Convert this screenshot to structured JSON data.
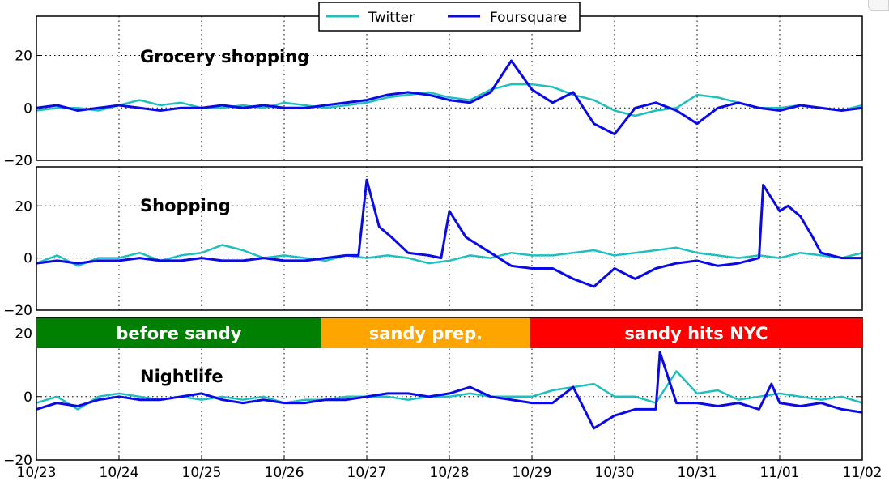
{
  "chart_data": {
    "type": "line",
    "x_tick_labels": [
      "10/23",
      "10/24",
      "10/25",
      "10/26",
      "10/27",
      "10/28",
      "10/29",
      "10/30",
      "10/31",
      "11/01",
      "11/02"
    ],
    "xlim": [
      0,
      10
    ],
    "legend": {
      "placement": "top-center",
      "entries": [
        "Twitter",
        "Foursquare"
      ]
    },
    "colors": {
      "Twitter": "#1fbfbf",
      "Foursquare": "#0a0ae6"
    },
    "phases": [
      {
        "label": "before sandy",
        "start": 0,
        "end": 3.45,
        "color": "#008000"
      },
      {
        "label": "sandy prep.",
        "start": 3.45,
        "end": 5.98,
        "color": "#ffa500"
      },
      {
        "label": "sandy hits NYC",
        "start": 5.98,
        "end": 10,
        "color": "#ff0000"
      }
    ],
    "panels": [
      {
        "title": "Grocery shopping",
        "ylim": [
          -20,
          35
        ],
        "y_ticks": [
          -20,
          0,
          20
        ],
        "y_tick_labels": [
          "−20",
          "0",
          "20"
        ],
        "series": [
          {
            "name": "Twitter",
            "x": [
              0,
              0.25,
              0.5,
              0.75,
              1,
              1.25,
              1.5,
              1.75,
              2,
              2.25,
              2.5,
              2.75,
              3,
              3.25,
              3.5,
              3.75,
              4,
              4.25,
              4.5,
              4.75,
              5,
              5.25,
              5.5,
              5.75,
              6,
              6.25,
              6.5,
              6.75,
              7,
              7.25,
              7.5,
              7.75,
              8,
              8.25,
              8.5,
              8.75,
              9,
              9.25,
              9.5,
              9.75,
              10
            ],
            "y": [
              -1,
              0,
              0,
              -1,
              1,
              3,
              1,
              2,
              0,
              0,
              1,
              0,
              2,
              1,
              0,
              1,
              2,
              4,
              5,
              6,
              4,
              3,
              7,
              9,
              9,
              8,
              5,
              3,
              -1,
              -3,
              -1,
              0,
              5,
              4,
              2,
              0,
              0,
              1,
              0,
              -1,
              1
            ]
          },
          {
            "name": "Foursquare",
            "x": [
              0,
              0.25,
              0.5,
              0.75,
              1,
              1.25,
              1.5,
              1.75,
              2,
              2.25,
              2.5,
              2.75,
              3,
              3.25,
              3.5,
              3.75,
              4,
              4.25,
              4.5,
              4.75,
              5,
              5.25,
              5.5,
              5.75,
              6,
              6.25,
              6.5,
              6.75,
              7,
              7.25,
              7.5,
              7.75,
              8,
              8.25,
              8.5,
              8.75,
              9,
              9.25,
              9.5,
              9.75,
              10
            ],
            "y": [
              0,
              1,
              -1,
              0,
              1,
              0,
              -1,
              0,
              0,
              1,
              0,
              1,
              0,
              0,
              1,
              2,
              3,
              5,
              6,
              5,
              3,
              2,
              6,
              18,
              7,
              2,
              6,
              -6,
              -10,
              0,
              2,
              -1,
              -6,
              0,
              2,
              0,
              -1,
              1,
              0,
              -1,
              0
            ]
          }
        ]
      },
      {
        "title": "Shopping",
        "ylim": [
          -20,
          35
        ],
        "y_ticks": [
          -20,
          0,
          20
        ],
        "y_tick_labels": [
          "−20",
          "0",
          "20"
        ],
        "series": [
          {
            "name": "Twitter",
            "x": [
              0,
              0.25,
              0.5,
              0.75,
              1,
              1.25,
              1.5,
              1.75,
              2,
              2.25,
              2.5,
              2.75,
              3,
              3.25,
              3.5,
              3.75,
              4,
              4.25,
              4.5,
              4.75,
              5,
              5.25,
              5.5,
              5.75,
              6,
              6.25,
              6.5,
              6.75,
              7,
              7.25,
              7.5,
              7.75,
              8,
              8.25,
              8.5,
              8.75,
              9,
              9.25,
              9.5,
              9.75,
              10
            ],
            "y": [
              -2,
              1,
              -3,
              0,
              0,
              2,
              -1,
              1,
              2,
              5,
              3,
              0,
              1,
              0,
              -1,
              1,
              0,
              1,
              0,
              -2,
              -1,
              1,
              0,
              2,
              1,
              1,
              2,
              3,
              1,
              2,
              3,
              4,
              2,
              1,
              0,
              1,
              0,
              2,
              1,
              0,
              2
            ]
          },
          {
            "name": "Foursquare",
            "x": [
              0,
              0.25,
              0.5,
              0.75,
              1,
              1.25,
              1.5,
              1.75,
              2,
              2.25,
              2.5,
              2.75,
              3,
              3.25,
              3.5,
              3.75,
              3.9,
              4,
              4.15,
              4.3,
              4.5,
              4.75,
              4.9,
              5,
              5.2,
              5.5,
              5.75,
              6,
              6.25,
              6.5,
              6.75,
              7,
              7.25,
              7.5,
              7.75,
              8,
              8.25,
              8.5,
              8.75,
              8.8,
              9,
              9.1,
              9.25,
              9.4,
              9.5,
              9.75,
              10
            ],
            "y": [
              -2,
              -1,
              -2,
              -1,
              -1,
              0,
              -1,
              -1,
              0,
              -1,
              -1,
              0,
              -1,
              -1,
              0,
              1,
              1,
              30,
              12,
              8,
              2,
              1,
              0,
              18,
              8,
              2,
              -3,
              -4,
              -4,
              -8,
              -11,
              -4,
              -8,
              -4,
              -2,
              -1,
              -3,
              -2,
              0,
              28,
              18,
              20,
              16,
              8,
              2,
              0,
              0
            ]
          }
        ]
      },
      {
        "title": "Nightlife",
        "ylim": [
          -20,
          25
        ],
        "y_ticks": [
          -20,
          0,
          20
        ],
        "y_tick_labels": [
          "−20",
          "0",
          "20"
        ],
        "series": [
          {
            "name": "Twitter",
            "x": [
              0,
              0.25,
              0.5,
              0.75,
              1,
              1.25,
              1.5,
              1.75,
              2,
              2.25,
              2.5,
              2.75,
              3,
              3.25,
              3.5,
              3.75,
              4,
              4.25,
              4.5,
              4.75,
              5,
              5.25,
              5.5,
              5.75,
              6,
              6.25,
              6.5,
              6.75,
              7,
              7.25,
              7.5,
              7.75,
              8,
              8.25,
              8.5,
              8.75,
              9,
              9.25,
              9.5,
              9.75,
              10
            ],
            "y": [
              -2,
              0,
              -4,
              0,
              1,
              0,
              -1,
              0,
              -1,
              0,
              -1,
              0,
              -2,
              -1,
              -1,
              0,
              0,
              0,
              -1,
              0,
              0,
              1,
              0,
              0,
              0,
              2,
              3,
              4,
              0,
              0,
              -2,
              8,
              1,
              2,
              -1,
              0,
              1,
              0,
              -1,
              0,
              -2
            ]
          },
          {
            "name": "Foursquare",
            "x": [
              0,
              0.25,
              0.5,
              0.75,
              1,
              1.25,
              1.5,
              1.75,
              2,
              2.25,
              2.5,
              2.75,
              3,
              3.25,
              3.5,
              3.75,
              4,
              4.25,
              4.5,
              4.75,
              5,
              5.25,
              5.5,
              5.75,
              6,
              6.25,
              6.5,
              6.75,
              7,
              7.25,
              7.5,
              7.55,
              7.75,
              8,
              8.25,
              8.5,
              8.75,
              8.9,
              9,
              9.25,
              9.5,
              9.75,
              10
            ],
            "y": [
              -4,
              -2,
              -3,
              -1,
              0,
              -1,
              -1,
              0,
              1,
              -1,
              -2,
              -1,
              -2,
              -2,
              -1,
              -1,
              0,
              1,
              1,
              0,
              1,
              3,
              0,
              -1,
              -2,
              -2,
              3,
              -10,
              -6,
              -4,
              -4,
              14,
              -2,
              -2,
              -3,
              -2,
              -4,
              4,
              -2,
              -3,
              -2,
              -4,
              -5
            ]
          }
        ]
      }
    ]
  }
}
